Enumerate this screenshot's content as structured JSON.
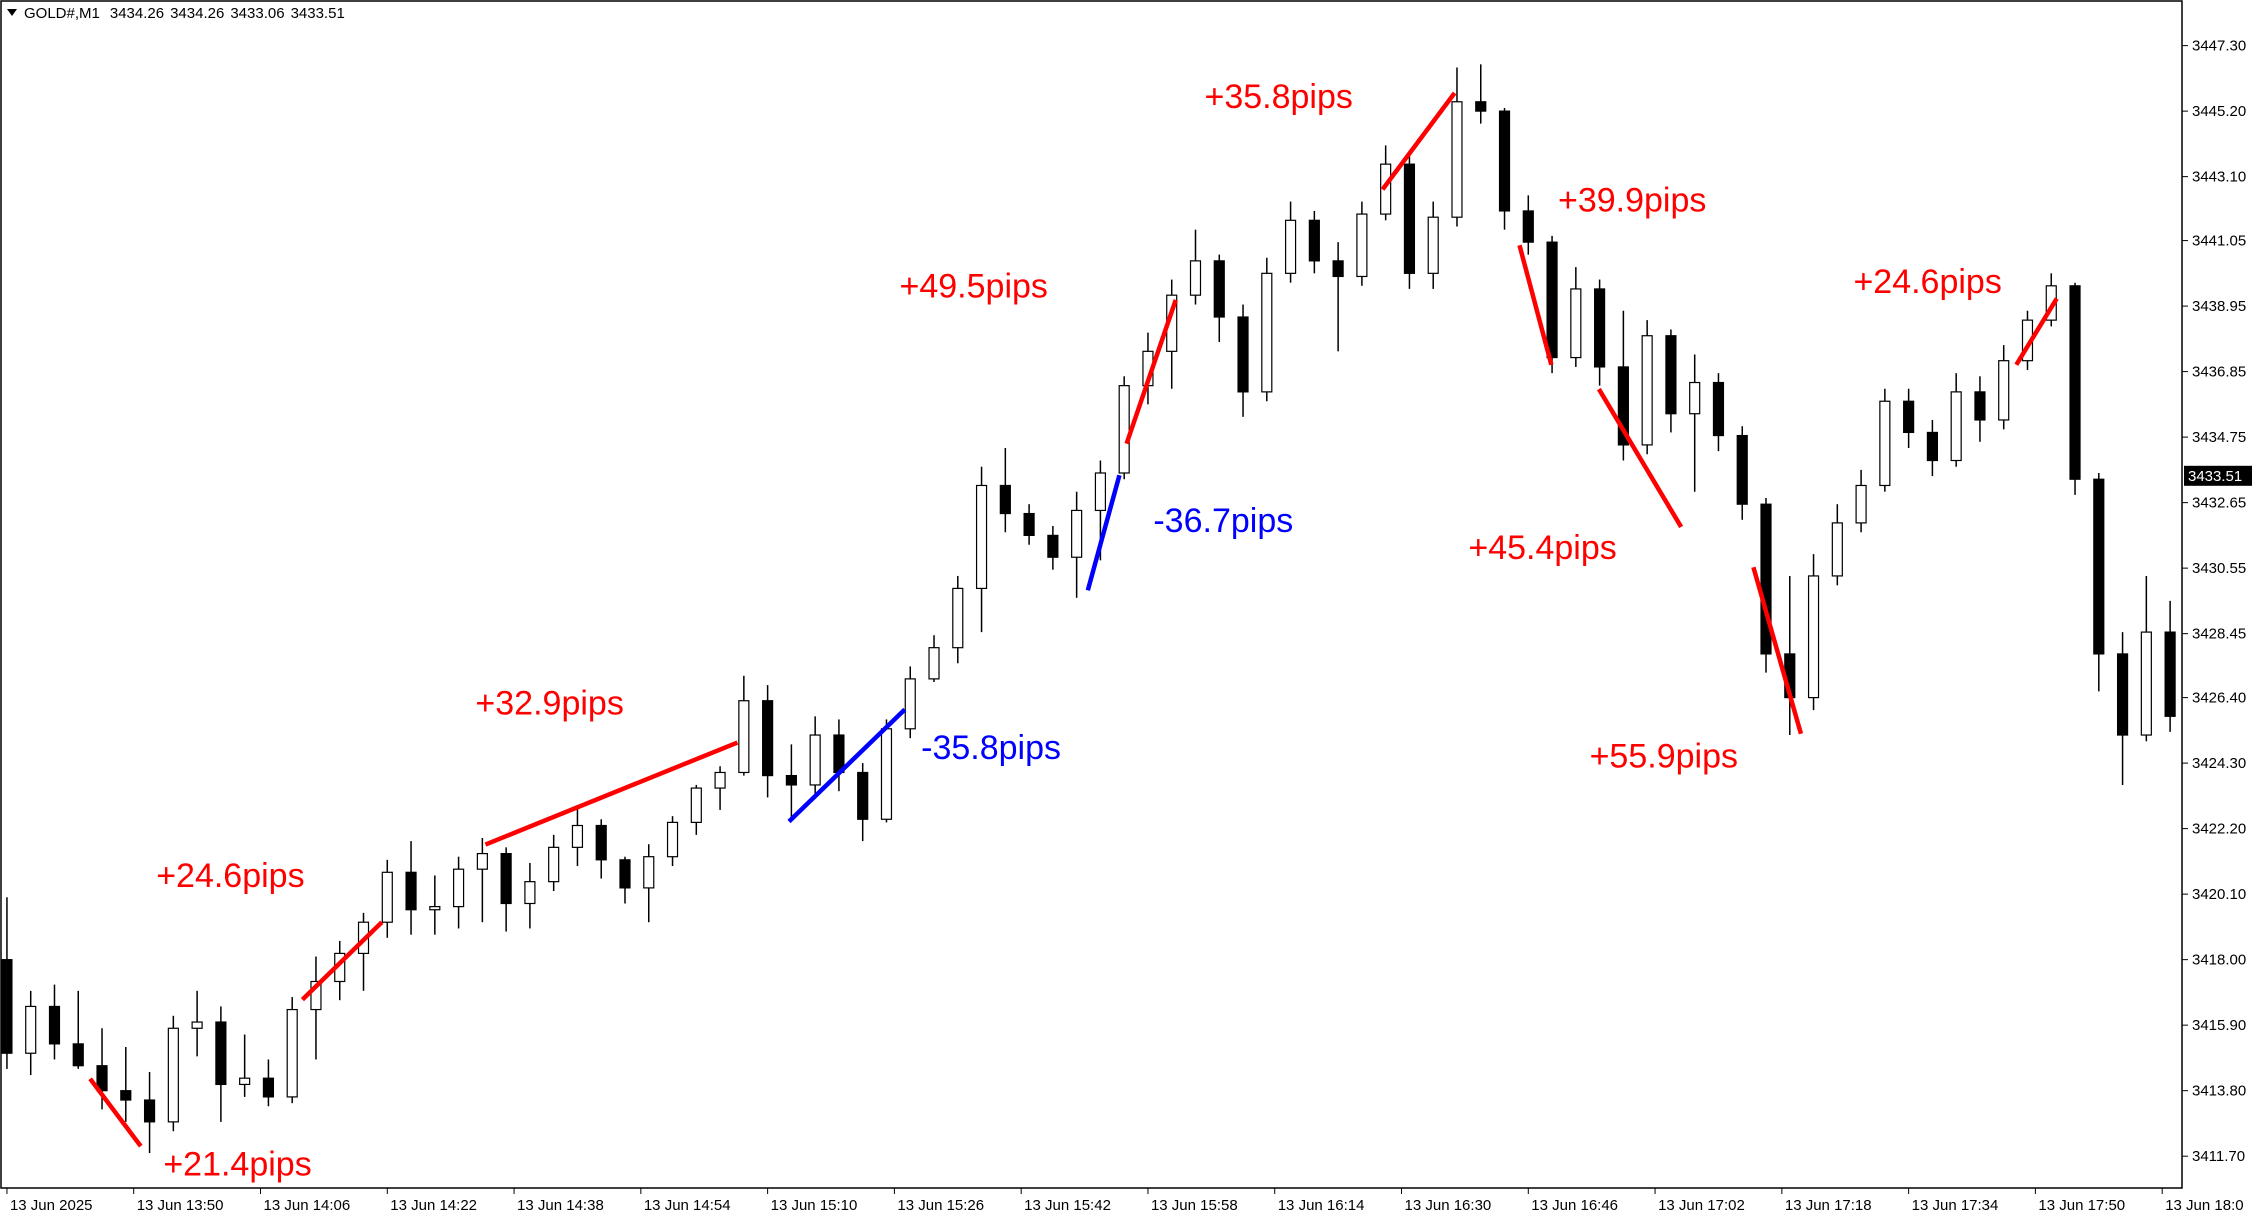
{
  "chart_data": {
    "type": "candlestick",
    "symbol": "GOLD#,M1",
    "quote": [
      3434.26,
      3434.26,
      3433.06,
      3433.51
    ],
    "xlim": [
      -0.25,
      91.5
    ],
    "ylim": [
      3410.68,
      3448.73
    ],
    "xticks": [
      {
        "value": 0,
        "label": "13 Jun 2025"
      },
      {
        "value": 5.333,
        "label": "13 Jun 13:50"
      },
      {
        "value": 10.667,
        "label": "13 Jun 14:06"
      },
      {
        "value": 16,
        "label": "13 Jun 14:22"
      },
      {
        "value": 21.333,
        "label": "13 Jun 14:38"
      },
      {
        "value": 26.667,
        "label": "13 Jun 14:54"
      },
      {
        "value": 32,
        "label": "13 Jun 15:10"
      },
      {
        "value": 37.333,
        "label": "13 Jun 15:26"
      },
      {
        "value": 42.667,
        "label": "13 Jun 15:42"
      },
      {
        "value": 48,
        "label": "13 Jun 15:58"
      },
      {
        "value": 53.333,
        "label": "13 Jun 16:14"
      },
      {
        "value": 58.667,
        "label": "13 Jun 16:30"
      },
      {
        "value": 64,
        "label": "13 Jun 16:46"
      },
      {
        "value": 69.333,
        "label": "13 Jun 17:02"
      },
      {
        "value": 74.667,
        "label": "13 Jun 17:18"
      },
      {
        "value": 80,
        "label": "13 Jun 17:34"
      },
      {
        "value": 85.333,
        "label": "13 Jun 17:50"
      },
      {
        "value": 90.667,
        "label": "13 Jun 18:0"
      }
    ],
    "yticks": [
      {
        "value": 3447.3,
        "label": "3447.30"
      },
      {
        "value": 3445.2,
        "label": "3445.20"
      },
      {
        "value": 3443.1,
        "label": "3443.10"
      },
      {
        "value": 3441.05,
        "label": "3441.05"
      },
      {
        "value": 3438.95,
        "label": "3438.95"
      },
      {
        "value": 3436.85,
        "label": "3436.85"
      },
      {
        "value": 3434.75,
        "label": "3434.75"
      },
      {
        "value": 3432.65,
        "label": "3432.65"
      },
      {
        "value": 3430.55,
        "label": "3430.55"
      },
      {
        "value": 3428.45,
        "label": "3428.45"
      },
      {
        "value": 3426.4,
        "label": "3426.40"
      },
      {
        "value": 3424.3,
        "label": "3424.30"
      },
      {
        "value": 3422.2,
        "label": "3422.20"
      },
      {
        "value": 3420.1,
        "label": "3420.10"
      },
      {
        "value": 3418,
        "label": "3418.00"
      },
      {
        "value": 3415.9,
        "label": "3415.90"
      },
      {
        "value": 3413.8,
        "label": "3413.80"
      },
      {
        "value": 3411.7,
        "label": "3411.70"
      }
    ],
    "up_color": "#ffffff",
    "down_color": "#000000",
    "open": [
      3418,
      3415,
      3416.5,
      3415.3,
      3414.6,
      3413.8,
      3413.5,
      3412.8,
      3415.8,
      3416,
      3414,
      3414.2,
      3413.6,
      3416.4,
      3417.3,
      3418.2,
      3419.2,
      3420.8,
      3419.6,
      3419.7,
      3420.9,
      3421.4,
      3419.8,
      3420.5,
      3421.6,
      3422.3,
      3421.2,
      3420.3,
      3421.3,
      3422.4,
      3423.5,
      3424,
      3426.3,
      3423.9,
      3423.6,
      3425.2,
      3424,
      3422.5,
      3425.4,
      3427,
      3428,
      3429.9,
      3433.2,
      3432.3,
      3431.6,
      3430.9,
      3432.4,
      3433.6,
      3436.4,
      3437.5,
      3439.3,
      3440.4,
      3438.6,
      3436.2,
      3440,
      3441.7,
      3440.4,
      3439.9,
      3441.9,
      3443.5,
      3440,
      3441.8,
      3445.5,
      3445.2,
      3442,
      3441,
      3437.3,
      3439.5,
      3437,
      3434.5,
      3438,
      3435.5,
      3436.5,
      3434.8,
      3432.6,
      3427.8,
      3426.4,
      3430.3,
      3432,
      3433.2,
      3435.9,
      3434.9,
      3434,
      3436.2,
      3435.3,
      3437.2,
      3438.5,
      3439.6,
      3433.4,
      3427.8,
      3425.2,
      3428.5
    ],
    "high": [
      3420,
      3417,
      3417.2,
      3417,
      3415.8,
      3415.2,
      3414.4,
      3416.2,
      3417,
      3416.5,
      3415.6,
      3414.8,
      3416.8,
      3418.1,
      3418.6,
      3419.5,
      3421.2,
      3421.8,
      3420.7,
      3421.3,
      3421.9,
      3421.6,
      3421.1,
      3422,
      3422.9,
      3422.5,
      3421.3,
      3421.7,
      3422.6,
      3423.6,
      3424.2,
      3427.1,
      3426.8,
      3424.9,
      3425.8,
      3425.7,
      3424.3,
      3425.7,
      3427.4,
      3428.4,
      3430.3,
      3433.8,
      3434.4,
      3432.6,
      3431.9,
      3433,
      3434,
      3436.7,
      3438.1,
      3439.8,
      3441.4,
      3440.6,
      3439,
      3440.5,
      3442.3,
      3442,
      3441,
      3442.3,
      3444.1,
      3443.8,
      3442.3,
      3446.6,
      3446.7,
      3445.3,
      3442.5,
      3441.2,
      3440.2,
      3439.8,
      3438.8,
      3438.5,
      3438.2,
      3437.4,
      3436.8,
      3435.1,
      3432.8,
      3430.3,
      3431,
      3432.6,
      3433.7,
      3436.3,
      3436.3,
      3435.3,
      3436.8,
      3436.7,
      3437.7,
      3438.8,
      3440,
      3439.7,
      3433.6,
      3428.5,
      3430.3,
      3429.5
    ],
    "low": [
      3414.5,
      3414.3,
      3414.8,
      3414.5,
      3413.2,
      3412.8,
      3411.8,
      3412.5,
      3414.9,
      3412.8,
      3413.6,
      3413.3,
      3413.4,
      3414.8,
      3416.7,
      3417,
      3418.7,
      3418.8,
      3418.8,
      3419,
      3419.2,
      3418.9,
      3419,
      3420.2,
      3421,
      3420.6,
      3419.8,
      3419.2,
      3421,
      3422,
      3422.8,
      3423.9,
      3423.2,
      3422.5,
      3423.2,
      3423.4,
      3421.8,
      3422.4,
      3425.1,
      3426.9,
      3427.5,
      3428.5,
      3431.7,
      3431.3,
      3430.5,
      3429.6,
      3430.8,
      3433.4,
      3435.8,
      3436.3,
      3439,
      3437.8,
      3435.4,
      3435.9,
      3439.7,
      3440,
      3437.5,
      3439.6,
      3441.7,
      3439.5,
      3439.5,
      3441.5,
      3444.8,
      3441.4,
      3440.6,
      3436.8,
      3437,
      3436.4,
      3434,
      3434.2,
      3434.9,
      3433,
      3434.3,
      3432.1,
      3427.2,
      3425.2,
      3426,
      3430,
      3431.7,
      3433,
      3434.4,
      3433.5,
      3433.8,
      3434.6,
      3435,
      3436.9,
      3438.3,
      3432.9,
      3426.6,
      3423.6,
      3425,
      3425.3
    ],
    "close": [
      3415,
      3416.5,
      3415.3,
      3414.6,
      3413.8,
      3413.5,
      3412.8,
      3415.8,
      3416,
      3414,
      3414.2,
      3413.6,
      3416.4,
      3417.3,
      3418.2,
      3419.2,
      3420.8,
      3419.6,
      3419.7,
      3420.9,
      3421.4,
      3419.8,
      3420.5,
      3421.6,
      3422.3,
      3421.2,
      3420.3,
      3421.3,
      3422.4,
      3423.5,
      3424,
      3426.3,
      3423.9,
      3423.6,
      3425.2,
      3424,
      3422.5,
      3425.4,
      3427,
      3428,
      3429.9,
      3433.2,
      3432.3,
      3431.6,
      3430.9,
      3432.4,
      3433.6,
      3436.4,
      3437.5,
      3439.3,
      3440.4,
      3438.6,
      3436.2,
      3440,
      3441.7,
      3440.4,
      3439.9,
      3441.9,
      3443.5,
      3440,
      3441.8,
      3445.5,
      3445.2,
      3442,
      3441,
      3437.3,
      3439.5,
      3437,
      3434.5,
      3438,
      3435.5,
      3436.5,
      3434.8,
      3432.6,
      3427.8,
      3426.4,
      3430.3,
      3432,
      3433.2,
      3435.9,
      3434.9,
      3434,
      3436.2,
      3435.3,
      3437.2,
      3438.5,
      3439.6,
      3433.4,
      3427.8,
      3425.2,
      3428.5,
      3425.8
    ],
    "annotations": [
      {
        "text": "+21.4pips",
        "color": "#ff0000",
        "x": [
          3.5,
          5.63
        ],
        "y": [
          3414.18,
          3412.02
        ],
        "label_x": 9.7,
        "label_y": 3411.46
      },
      {
        "text": "+24.6pips",
        "color": "#ff0000",
        "x": [
          12.43,
          15.77
        ],
        "y": [
          3416.72,
          3419.2
        ],
        "label_x": 9.4,
        "label_y": 3420.72
      },
      {
        "text": "+32.9pips",
        "color": "#ff0000",
        "x": [
          20.13,
          30.73
        ],
        "y": [
          3421.69,
          3424.96
        ],
        "label_x": 22.83,
        "label_y": 3426.25
      },
      {
        "text": "-35.8pips",
        "color": "#0000ff",
        "x": [
          32.9,
          37.77
        ],
        "y": [
          3422.43,
          3426.02
        ],
        "label_x": 41.4,
        "label_y": 3424.82
      },
      {
        "text": "-36.7pips",
        "color": "#0000ff",
        "x": [
          45.47,
          46.8
        ],
        "y": [
          3429.84,
          3433.53
        ],
        "label_x": 51.17,
        "label_y": 3432.1
      },
      {
        "text": "+49.5pips",
        "color": "#ff0000",
        "x": [
          47.1,
          49.17
        ],
        "y": [
          3434.54,
          3439.15
        ],
        "label_x": 40.67,
        "label_y": 3439.61
      },
      {
        "text": "+35.8pips",
        "color": "#ff0000",
        "x": [
          57.87,
          60.9
        ],
        "y": [
          3442.69,
          3445.78
        ],
        "label_x": 53.5,
        "label_y": 3445.69
      },
      {
        "text": "+39.9pips",
        "color": "#ff0000",
        "x": [
          63.63,
          64.97
        ],
        "y": [
          3440.9,
          3437.07
        ],
        "label_x": 68.37,
        "label_y": 3442.37
      },
      {
        "text": "+45.4pips",
        "color": "#ff0000",
        "x": [
          66.97,
          70.43
        ],
        "y": [
          3436.29,
          3431.87
        ],
        "label_x": 64.6,
        "label_y": 3431.22
      },
      {
        "text": "+55.9pips",
        "color": "#ff0000",
        "x": [
          73.47,
          75.47
        ],
        "y": [
          3430.58,
          3425.24
        ],
        "label_x": 69.7,
        "label_y": 3424.55
      },
      {
        "text": "+24.6pips",
        "color": "#ff0000",
        "x": [
          84.53,
          86.23
        ],
        "y": [
          3437.07,
          3439.19
        ],
        "label_x": 80.8,
        "label_y": 3439.75
      }
    ]
  }
}
